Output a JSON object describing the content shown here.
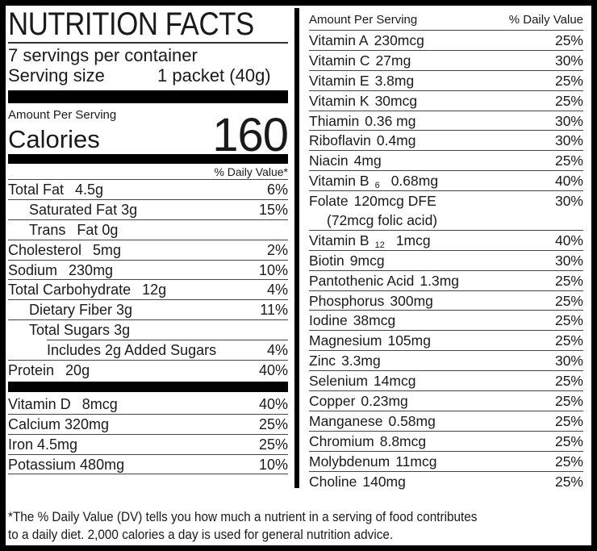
{
  "label": {
    "title": "NUTRITION FACTS",
    "servings_per_container": "7 servings per container",
    "serving_size_label": "Serving size",
    "serving_size_value": "1 packet (40g)",
    "amount_per_serving": "Amount Per Serving",
    "calories_label": "Calories",
    "calories_value": "160",
    "daily_value_header_left": "% Daily Value*",
    "colors": {
      "ink": "#1a1a1a",
      "bar": "#000000",
      "background": "#ffffff"
    },
    "left_rows": [
      {
        "name": "Total Fat",
        "amount": "4.5g",
        "dv": "6%",
        "indent": 0,
        "gap": "wide"
      },
      {
        "name": "Saturated Fat",
        "amount": "3g",
        "dv": "15%",
        "indent": 1,
        "gap": "normal"
      },
      {
        "name": "Trans",
        "amount": "Fat 0g",
        "dv": "",
        "indent": 1,
        "gap": "wide"
      },
      {
        "name": "Cholesterol",
        "amount": "5mg",
        "dv": "2%",
        "indent": 0,
        "gap": "wide"
      },
      {
        "name": "Sodium",
        "amount": "230mg",
        "dv": "10%",
        "indent": 0,
        "gap": "wide"
      },
      {
        "name": "Total Carbohydrate",
        "amount": "12g",
        "dv": "4%",
        "indent": 0,
        "gap": "wide"
      },
      {
        "name": "Dietary Fiber",
        "amount": "3g",
        "dv": "11%",
        "indent": 1,
        "gap": "normal"
      },
      {
        "name": "Total Sugars",
        "amount": "3g",
        "dv": "",
        "indent": 1,
        "gap": "normal",
        "sep_indent": 48
      },
      {
        "name": "Includes 2g Added Sugars",
        "amount": "",
        "dv": "4%",
        "indent": 2,
        "gap": "none"
      },
      {
        "name": "Protein",
        "amount": "20g",
        "dv": "40%",
        "indent": 0,
        "gap": "wide",
        "no_sep": true
      }
    ],
    "left_rows2": [
      {
        "name": "Vitamin D",
        "amount": "8mcg",
        "dv": "40%",
        "indent": 0,
        "gap": "wide"
      },
      {
        "name": "Calcium",
        "amount": "320mg",
        "dv": "25%",
        "indent": 0,
        "gap": "normal"
      },
      {
        "name": "Iron",
        "amount": "4.5mg",
        "dv": "25%",
        "indent": 0,
        "gap": "normal"
      },
      {
        "name": "Potassium",
        "amount": "480mg",
        "dv": "10%",
        "indent": 0,
        "gap": "normal"
      }
    ],
    "right_header": {
      "amount_label": "Amount Per Serving",
      "dv_label": "% Daily Value"
    },
    "right_rows": [
      {
        "name": "Vitamin A",
        "amount": "230mcg",
        "dv": "25%"
      },
      {
        "name": "Vitamin C",
        "amount": "27mg",
        "dv": "30%"
      },
      {
        "name": "Vitamin E",
        "amount": "3.8mg",
        "dv": "25%"
      },
      {
        "name": "Vitamin K",
        "amount": "30mcg",
        "dv": "25%"
      },
      {
        "name": "Thiamin",
        "amount": "0.36 mg",
        "dv": "30%"
      },
      {
        "name": "Riboflavin",
        "amount": "0.4mg",
        "dv": "30%"
      },
      {
        "name": "Niacin",
        "amount": "4mg",
        "dv": "25%"
      },
      {
        "name": "Vitamin B",
        "sub": "6",
        "amount": "0.68mg",
        "dv": "40%"
      },
      {
        "name": "Folate",
        "amount": "120mcg DFE",
        "dv": "30%",
        "line2": "(72mcg folic acid)"
      },
      {
        "name": "Vitamin B",
        "sub": "12",
        "amount": "1mcg",
        "dv": "40%"
      },
      {
        "name": "Biotin",
        "amount": "9mcg",
        "dv": "30%"
      },
      {
        "name": "Pantothenic Acid",
        "amount": "1.3mg",
        "dv": "25%"
      },
      {
        "name": "Phosphorus",
        "amount": "300mg",
        "dv": "25%"
      },
      {
        "name": "Iodine",
        "amount": "38mcg",
        "dv": "25%"
      },
      {
        "name": "Magnesium",
        "amount": "105mg",
        "dv": "25%"
      },
      {
        "name": "Zinc",
        "amount": "3.3mg",
        "dv": "30%"
      },
      {
        "name": "Selenium",
        "amount": "14mcg",
        "dv": "25%"
      },
      {
        "name": "Copper",
        "amount": "0.23mg",
        "dv": "25%"
      },
      {
        "name": "Manganese",
        "amount": "0.58mg",
        "dv": "25%"
      },
      {
        "name": "Chromium",
        "amount": "8.8mcg",
        "dv": "25%"
      },
      {
        "name": "Molybdenum",
        "amount": "11mcg",
        "dv": "25%"
      },
      {
        "name": "Choline",
        "amount": "140mg",
        "dv": "25%",
        "no_sep": true
      }
    ],
    "footnote_line1": "*The % Daily Value (DV) tells you how much a nutrient in a serving of food contributes",
    "footnote_line2": "to a daily diet. 2,000 calories a day is used for general nutrition advice."
  }
}
